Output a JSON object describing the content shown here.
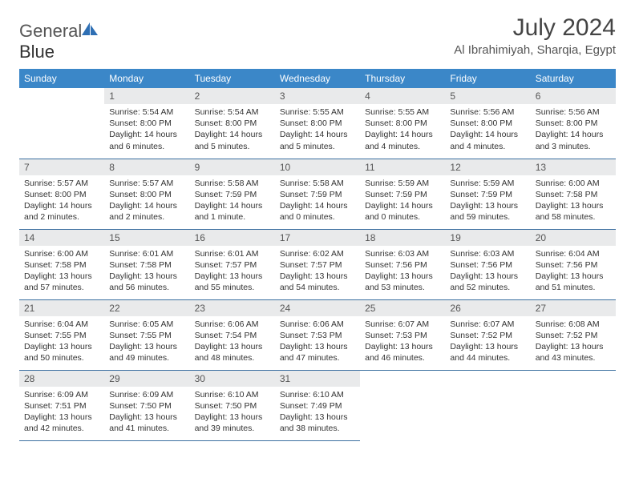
{
  "brand": {
    "part1": "General",
    "part2": "Blue"
  },
  "title": "July 2024",
  "location": "Al Ibrahimiyah, Sharqia, Egypt",
  "colors": {
    "header_bg": "#3b87c8",
    "header_text": "#ffffff",
    "daynum_bg": "#e9eaeb",
    "daynum_text": "#555555",
    "body_text": "#333333",
    "rule": "#3b6fa0",
    "title_text": "#444444",
    "logo_gray": "#6b6b6b",
    "logo_blue": "#2e6fb4"
  },
  "weekdays": [
    "Sunday",
    "Monday",
    "Tuesday",
    "Wednesday",
    "Thursday",
    "Friday",
    "Saturday"
  ],
  "weeks": [
    [
      null,
      {
        "n": "1",
        "sr": "5:54 AM",
        "ss": "8:00 PM",
        "dl": "14 hours and 6 minutes."
      },
      {
        "n": "2",
        "sr": "5:54 AM",
        "ss": "8:00 PM",
        "dl": "14 hours and 5 minutes."
      },
      {
        "n": "3",
        "sr": "5:55 AM",
        "ss": "8:00 PM",
        "dl": "14 hours and 5 minutes."
      },
      {
        "n": "4",
        "sr": "5:55 AM",
        "ss": "8:00 PM",
        "dl": "14 hours and 4 minutes."
      },
      {
        "n": "5",
        "sr": "5:56 AM",
        "ss": "8:00 PM",
        "dl": "14 hours and 4 minutes."
      },
      {
        "n": "6",
        "sr": "5:56 AM",
        "ss": "8:00 PM",
        "dl": "14 hours and 3 minutes."
      }
    ],
    [
      {
        "n": "7",
        "sr": "5:57 AM",
        "ss": "8:00 PM",
        "dl": "14 hours and 2 minutes."
      },
      {
        "n": "8",
        "sr": "5:57 AM",
        "ss": "8:00 PM",
        "dl": "14 hours and 2 minutes."
      },
      {
        "n": "9",
        "sr": "5:58 AM",
        "ss": "7:59 PM",
        "dl": "14 hours and 1 minute."
      },
      {
        "n": "10",
        "sr": "5:58 AM",
        "ss": "7:59 PM",
        "dl": "14 hours and 0 minutes."
      },
      {
        "n": "11",
        "sr": "5:59 AM",
        "ss": "7:59 PM",
        "dl": "14 hours and 0 minutes."
      },
      {
        "n": "12",
        "sr": "5:59 AM",
        "ss": "7:59 PM",
        "dl": "13 hours and 59 minutes."
      },
      {
        "n": "13",
        "sr": "6:00 AM",
        "ss": "7:58 PM",
        "dl": "13 hours and 58 minutes."
      }
    ],
    [
      {
        "n": "14",
        "sr": "6:00 AM",
        "ss": "7:58 PM",
        "dl": "13 hours and 57 minutes."
      },
      {
        "n": "15",
        "sr": "6:01 AM",
        "ss": "7:58 PM",
        "dl": "13 hours and 56 minutes."
      },
      {
        "n": "16",
        "sr": "6:01 AM",
        "ss": "7:57 PM",
        "dl": "13 hours and 55 minutes."
      },
      {
        "n": "17",
        "sr": "6:02 AM",
        "ss": "7:57 PM",
        "dl": "13 hours and 54 minutes."
      },
      {
        "n": "18",
        "sr": "6:03 AM",
        "ss": "7:56 PM",
        "dl": "13 hours and 53 minutes."
      },
      {
        "n": "19",
        "sr": "6:03 AM",
        "ss": "7:56 PM",
        "dl": "13 hours and 52 minutes."
      },
      {
        "n": "20",
        "sr": "6:04 AM",
        "ss": "7:56 PM",
        "dl": "13 hours and 51 minutes."
      }
    ],
    [
      {
        "n": "21",
        "sr": "6:04 AM",
        "ss": "7:55 PM",
        "dl": "13 hours and 50 minutes."
      },
      {
        "n": "22",
        "sr": "6:05 AM",
        "ss": "7:55 PM",
        "dl": "13 hours and 49 minutes."
      },
      {
        "n": "23",
        "sr": "6:06 AM",
        "ss": "7:54 PM",
        "dl": "13 hours and 48 minutes."
      },
      {
        "n": "24",
        "sr": "6:06 AM",
        "ss": "7:53 PM",
        "dl": "13 hours and 47 minutes."
      },
      {
        "n": "25",
        "sr": "6:07 AM",
        "ss": "7:53 PM",
        "dl": "13 hours and 46 minutes."
      },
      {
        "n": "26",
        "sr": "6:07 AM",
        "ss": "7:52 PM",
        "dl": "13 hours and 44 minutes."
      },
      {
        "n": "27",
        "sr": "6:08 AM",
        "ss": "7:52 PM",
        "dl": "13 hours and 43 minutes."
      }
    ],
    [
      {
        "n": "28",
        "sr": "6:09 AM",
        "ss": "7:51 PM",
        "dl": "13 hours and 42 minutes."
      },
      {
        "n": "29",
        "sr": "6:09 AM",
        "ss": "7:50 PM",
        "dl": "13 hours and 41 minutes."
      },
      {
        "n": "30",
        "sr": "6:10 AM",
        "ss": "7:50 PM",
        "dl": "13 hours and 39 minutes."
      },
      {
        "n": "31",
        "sr": "6:10 AM",
        "ss": "7:49 PM",
        "dl": "13 hours and 38 minutes."
      },
      null,
      null,
      null
    ]
  ],
  "labels": {
    "sunrise": "Sunrise:",
    "sunset": "Sunset:",
    "daylight": "Daylight:"
  }
}
